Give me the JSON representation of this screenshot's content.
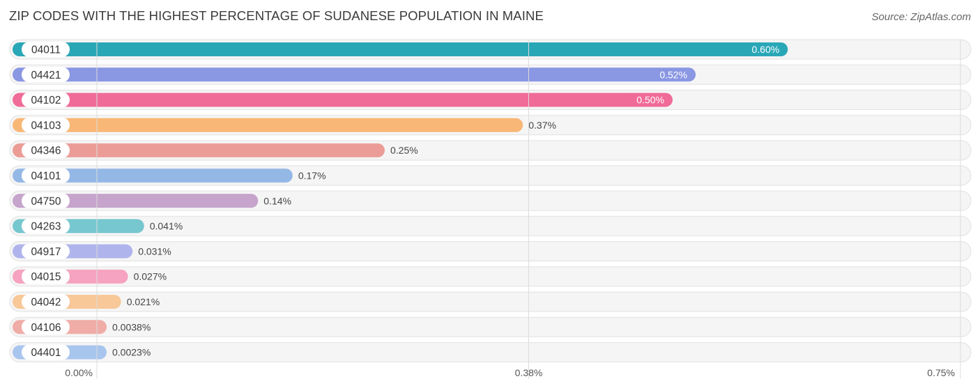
{
  "header": {
    "title": "ZIP CODES WITH THE HIGHEST PERCENTAGE OF SUDANESE POPULATION IN MAINE",
    "source": "Source: ZipAtlas.com"
  },
  "chart_data": {
    "type": "bar",
    "orientation": "horizontal",
    "title": "ZIP CODES WITH THE HIGHEST PERCENTAGE OF SUDANESE POPULATION IN MAINE",
    "categories": [
      "04011",
      "04421",
      "04102",
      "04103",
      "04346",
      "04101",
      "04750",
      "04263",
      "04917",
      "04015",
      "04042",
      "04106",
      "04401"
    ],
    "values": [
      0.6,
      0.52,
      0.5,
      0.37,
      0.25,
      0.17,
      0.14,
      0.041,
      0.031,
      0.027,
      0.021,
      0.0038,
      0.0023
    ],
    "value_labels": [
      "0.60%",
      "0.52%",
      "0.50%",
      "0.37%",
      "0.25%",
      "0.17%",
      "0.14%",
      "0.041%",
      "0.031%",
      "0.027%",
      "0.021%",
      "0.0038%",
      "0.0023%"
    ],
    "colors": [
      "#2aa7b7",
      "#8a97e3",
      "#f06b98",
      "#f9b777",
      "#ec9c96",
      "#94b8e6",
      "#c6a4cc",
      "#77c7cf",
      "#afb5ec",
      "#f5a3c0",
      "#f8c899",
      "#f0aca7",
      "#a8c5ee"
    ],
    "xlim": [
      0,
      0.75
    ],
    "x_ticks": [
      0,
      0.375,
      0.75
    ],
    "x_tick_labels": [
      "0.00%",
      "0.38%",
      "0.75%"
    ],
    "grid": true,
    "legend": "none",
    "xlabel": "",
    "ylabel": ""
  }
}
